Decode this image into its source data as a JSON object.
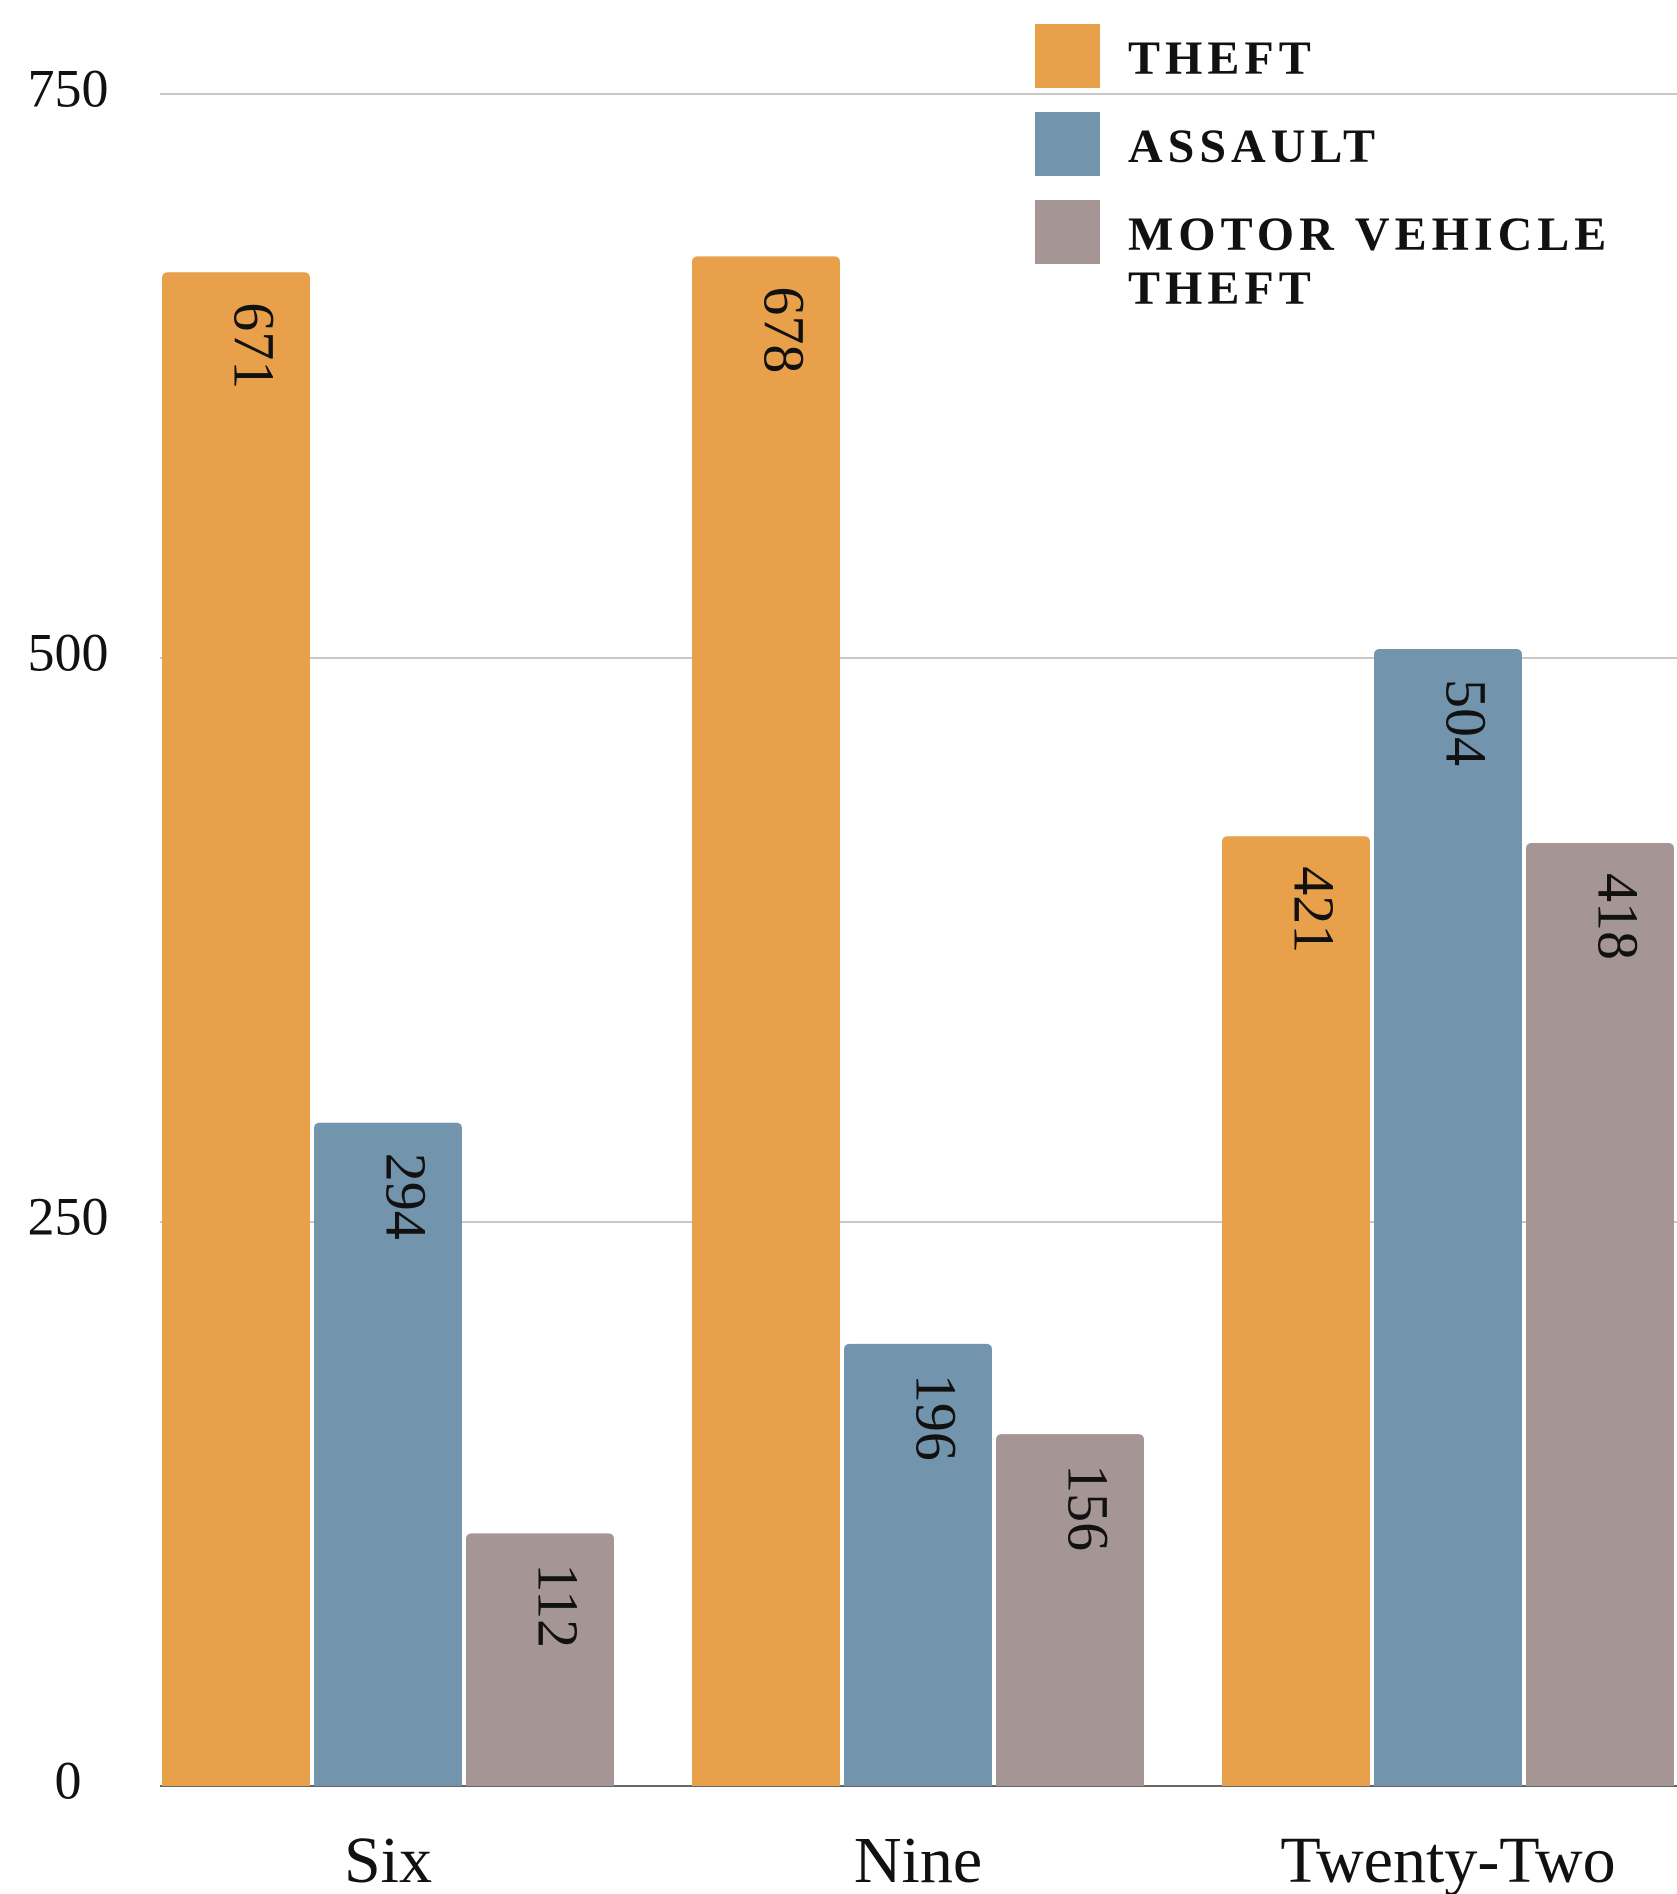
{
  "chart_data": {
    "type": "bar",
    "categories": [
      "Six",
      "Nine",
      "Twenty-Two"
    ],
    "series": [
      {
        "name": "THEFT",
        "color": "#e8a14a",
        "values": [
          671,
          678,
          421
        ]
      },
      {
        "name": "ASSAULT",
        "color": "#7394ad",
        "values": [
          294,
          196,
          504
        ]
      },
      {
        "name": "MOTOR VEHICLE THEFT",
        "color": "#a69595",
        "values": [
          112,
          156,
          418
        ]
      }
    ],
    "ylim": [
      0,
      750
    ],
    "yticks": [
      0,
      250,
      500,
      750
    ],
    "grid": true,
    "legend": "top-right"
  }
}
